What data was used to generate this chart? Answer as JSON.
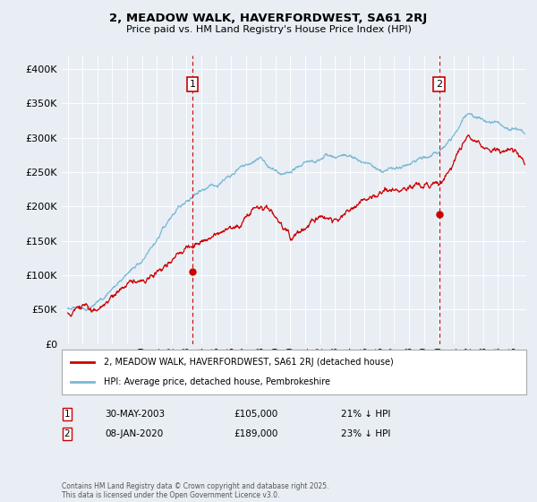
{
  "title_line1": "2, MEADOW WALK, HAVERFORDWEST, SA61 2RJ",
  "title_line2": "Price paid vs. HM Land Registry's House Price Index (HPI)",
  "legend_label1": "2, MEADOW WALK, HAVERFORDWEST, SA61 2RJ (detached house)",
  "legend_label2": "HPI: Average price, detached house, Pembrokeshire",
  "annotation1_label": "1",
  "annotation1_date": "30-MAY-2003",
  "annotation1_price": "£105,000",
  "annotation1_hpi": "21% ↓ HPI",
  "annotation2_label": "2",
  "annotation2_date": "08-JAN-2020",
  "annotation2_price": "£189,000",
  "annotation2_hpi": "23% ↓ HPI",
  "footer": "Contains HM Land Registry data © Crown copyright and database right 2025.\nThis data is licensed under the Open Government Licence v3.0.",
  "hpi_color": "#7ab8d4",
  "price_color": "#cc0000",
  "vline_color": "#cc0000",
  "bg_color": "#e8eef4",
  "ylim": [
    0,
    420000
  ],
  "yticks": [
    0,
    50000,
    100000,
    150000,
    200000,
    250000,
    300000,
    350000,
    400000
  ],
  "sale1_x": 2003.41,
  "sale1_y": 105000,
  "sale2_x": 2020.03,
  "sale2_y": 189000,
  "xlim_left": 1994.6,
  "xlim_right": 2025.9
}
